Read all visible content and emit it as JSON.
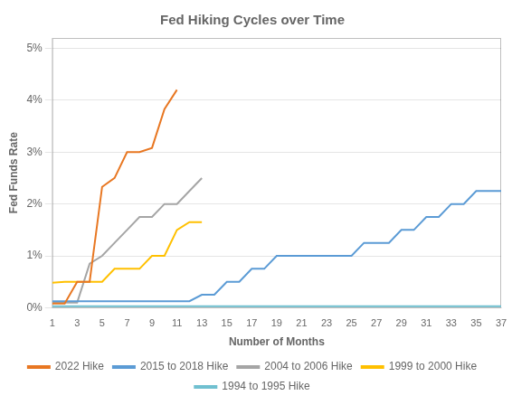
{
  "chart_data": {
    "type": "line",
    "title": "Fed Hiking Cycles over Time",
    "x_label": "Number of Months",
    "y_label": "Fed Funds Rate",
    "xlim": [
      1,
      37
    ],
    "xticks": [
      1,
      3,
      5,
      7,
      9,
      11,
      13,
      15,
      17,
      19,
      21,
      23,
      25,
      27,
      29,
      31,
      33,
      35,
      37
    ],
    "ylim": [
      0,
      0.052
    ],
    "yticks": [
      {
        "value": 0,
        "label": "0%"
      },
      {
        "value": 0.01,
        "label": "1%"
      },
      {
        "value": 0.02,
        "label": "2%"
      },
      {
        "value": 0.03,
        "label": "3%"
      },
      {
        "value": 0.04,
        "label": "4%"
      },
      {
        "value": 0.05,
        "label": "5%"
      }
    ],
    "grid": "y",
    "legend": "bottom",
    "series": [
      {
        "name": "2022 Hike",
        "color": "#E87722",
        "x": [
          1,
          2,
          3,
          4,
          5,
          6,
          7,
          8,
          9,
          10,
          11
        ],
        "values": [
          0.0008,
          0.0008,
          0.005,
          0.005,
          0.0233,
          0.025,
          0.03,
          0.03,
          0.0308,
          0.0383,
          0.042
        ]
      },
      {
        "name": "2015 to 2018 Hike",
        "color": "#5B9BD5",
        "x": [
          1,
          2,
          3,
          4,
          5,
          6,
          7,
          8,
          9,
          10,
          11,
          12,
          13,
          14,
          15,
          16,
          17,
          18,
          19,
          20,
          21,
          22,
          23,
          24,
          25,
          26,
          27,
          28,
          29,
          30,
          31,
          32,
          33,
          34,
          35,
          36,
          37
        ],
        "values": [
          0.00125,
          0.00125,
          0.00125,
          0.00125,
          0.00125,
          0.00125,
          0.00125,
          0.00125,
          0.00125,
          0.00125,
          0.00125,
          0.00125,
          0.0025,
          0.0025,
          0.005,
          0.005,
          0.0075,
          0.0075,
          0.01,
          0.01,
          0.01,
          0.01,
          0.01,
          0.01,
          0.01,
          0.0125,
          0.0125,
          0.0125,
          0.015,
          0.015,
          0.0175,
          0.0175,
          0.02,
          0.02,
          0.0225,
          0.0225,
          0.0225
        ]
      },
      {
        "name": "2004 to 2006 Hike",
        "color": "#A5A5A5",
        "x": [
          1,
          2,
          3,
          4,
          5,
          6,
          7,
          8,
          9,
          10,
          11,
          12,
          13
        ],
        "values": [
          0.001,
          0.001,
          0.001,
          0.0085,
          0.01,
          0.0125,
          0.015,
          0.0175,
          0.0175,
          0.02,
          0.02,
          0.0225,
          0.025
        ]
      },
      {
        "name": "1999 to 2000 Hike",
        "color": "#FFC000",
        "x": [
          1,
          2,
          3,
          4,
          5,
          6,
          7,
          8,
          9,
          10,
          11,
          12,
          13
        ],
        "values": [
          0.0048,
          0.005,
          0.005,
          0.005,
          0.005,
          0.0075,
          0.0075,
          0.0075,
          0.01,
          0.01,
          0.015,
          0.0165,
          0.0165
        ]
      },
      {
        "name": "1994 to 1995 Hike",
        "color": "#70C0D0",
        "x": [
          1,
          2,
          3,
          4,
          5,
          6,
          7,
          8,
          9,
          10,
          11,
          12,
          13,
          14,
          15,
          16,
          17,
          18,
          19,
          20,
          21,
          22,
          23,
          24,
          25,
          26,
          27,
          28,
          29,
          30,
          31,
          32,
          33,
          34,
          35,
          36,
          37
        ],
        "values": [
          0.0003,
          0.0003,
          0.0003,
          0.0003,
          0.0003,
          0.0003,
          0.0003,
          0.0003,
          0.0003,
          0.0003,
          0.0003,
          0.0003,
          0.0003,
          0.0003,
          0.0003,
          0.0003,
          0.0003,
          0.0003,
          0.0003,
          0.0003,
          0.0003,
          0.0003,
          0.0003,
          0.0003,
          0.0003,
          0.0003,
          0.0003,
          0.0003,
          0.0003,
          0.0003,
          0.0003,
          0.0003,
          0.0003,
          0.0003,
          0.0003,
          0.0003,
          0.0003
        ]
      }
    ]
  }
}
